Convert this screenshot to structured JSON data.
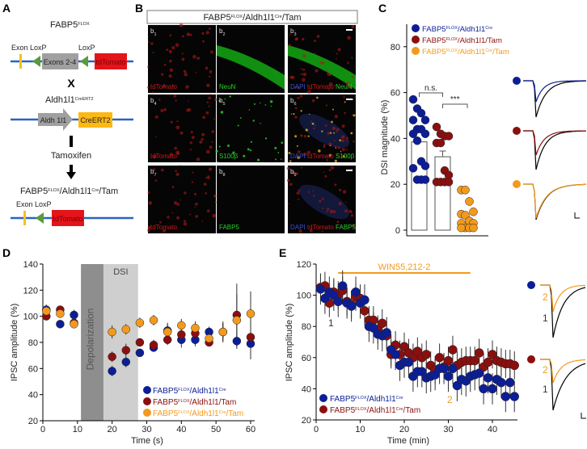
{
  "panel_letters": {
    "a": "A",
    "b": "B",
    "c": "C",
    "d": "D",
    "e": "E"
  },
  "colors": {
    "blue": "#0c1e96",
    "red": "#8b0f0f",
    "orange": "#f39a1e",
    "dna_line": "#2a64c0",
    "exon": "#f2c21b",
    "loxp": "#5a9a3a",
    "tdtomato": "#e4141b",
    "gene_gray": "#a0a0a0",
    "creert2": "#fcb813",
    "green_stain": "#1fbf1f",
    "dapi": "#2b3c9a"
  },
  "panel_a": {
    "title1": [
      {
        "t": "FABP5"
      },
      {
        "t": "FLOX",
        "sup": true
      }
    ],
    "exon1": "Exon",
    "loxp1": "LoxP",
    "loxp2": "LoxP",
    "exons_box": "Exons 2-4",
    "tdtomato1": "tdTomato",
    "cross": "X",
    "title2": [
      {
        "t": "Aldh1l1"
      },
      {
        "t": "CreERT2",
        "sup": true
      }
    ],
    "aldh_arrow": "Aldh 1l1",
    "creert2_box": "CreERT2",
    "tamoxifen": "Tamoxifen",
    "title3": [
      {
        "t": "FABP5"
      },
      {
        "t": "FLOX",
        "sup": true
      },
      {
        "t": "/Aldh1l1"
      },
      {
        "t": "Cre",
        "sup": true
      },
      {
        "t": "/Tam"
      }
    ],
    "exon2": "Exon",
    "loxp3": "LoxP",
    "tdtomato2": "tdTomato"
  },
  "panel_b": {
    "header": [
      {
        "t": "FABP5"
      },
      {
        "t": "FLOX",
        "sup": true
      },
      {
        "t": "/Aldh1l1"
      },
      {
        "t": "Cre",
        "sup": true
      },
      {
        "t": "/Tam"
      }
    ],
    "images": [
      {
        "id": "b",
        "sub": "1",
        "stain": "red",
        "labels": [
          {
            "t": "tdTomato",
            "c": "red"
          }
        ]
      },
      {
        "id": "b",
        "sub": "2",
        "stain": "neun",
        "labels": [
          {
            "t": "NeuN",
            "c": "green"
          }
        ]
      },
      {
        "id": "b",
        "sub": "3",
        "stain": "merge_neun",
        "scalebar": true,
        "labels": [
          {
            "t": "DAPI",
            "c": "blue"
          },
          {
            "t": " tdTomato",
            "c": "red"
          },
          {
            "t": " NeuN",
            "c": "green"
          }
        ]
      },
      {
        "id": "b",
        "sub": "4",
        "stain": "red",
        "labels": [
          {
            "t": "tdTomato",
            "c": "red"
          }
        ]
      },
      {
        "id": "b",
        "sub": "5",
        "stain": "dots_green",
        "labels": [
          {
            "t": "S100β",
            "c": "green"
          }
        ]
      },
      {
        "id": "b",
        "sub": "6",
        "stain": "merge_s100",
        "scalebar": true,
        "labels": [
          {
            "t": "DAPI",
            "c": "blue"
          },
          {
            "t": " tdTomato",
            "c": "red"
          },
          {
            "t": " S100β",
            "c": "green"
          }
        ]
      },
      {
        "id": "b",
        "sub": "7",
        "stain": "red",
        "labels": [
          {
            "t": "tdTomato",
            "c": "red"
          }
        ]
      },
      {
        "id": "b",
        "sub": "8",
        "stain": "empty",
        "labels": [
          {
            "t": "FABP5",
            "c": "green"
          }
        ]
      },
      {
        "id": "b",
        "sub": "9",
        "stain": "merge_fabp5",
        "scalebar": true,
        "labels": [
          {
            "t": "DAPI",
            "c": "blue"
          },
          {
            "t": " tdTomato",
            "c": "red"
          },
          {
            "t": " FABP5",
            "c": "green"
          }
        ]
      }
    ]
  },
  "legend_genotypes": {
    "ctrl": [
      {
        "t": "FABP5"
      },
      {
        "t": "FLOX",
        "sup": true
      },
      {
        "t": "/Aldh1l1"
      },
      {
        "t": "Cre",
        "sup": true
      }
    ],
    "tam_ctrl": [
      {
        "t": "FABP5"
      },
      {
        "t": "FLOX",
        "sup": true
      },
      {
        "t": "/Aldh1l1/Tam"
      }
    ],
    "ko": [
      {
        "t": "FABP5"
      },
      {
        "t": "FLOX",
        "sup": true
      },
      {
        "t": "/Aldh1l1"
      },
      {
        "t": "Cre",
        "sup": true
      },
      {
        "t": "/Tam"
      }
    ],
    "tam_cre": [
      {
        "t": "FABP5"
      },
      {
        "t": "FLOX",
        "sup": true
      },
      {
        "t": "/Aldh1l1"
      },
      {
        "t": "Cre",
        "sup": true
      },
      {
        "t": "/Tam"
      }
    ]
  },
  "chart_data": [
    {
      "panel": "C",
      "type": "bar",
      "ylabel": "DSI magnitude (%)",
      "ylim": [
        0,
        90
      ],
      "yticks": [
        0,
        20,
        40,
        60,
        80
      ],
      "legend_position": "top-left",
      "series": [
        {
          "legend": "ctrl",
          "color": "blue",
          "mean": 38.5,
          "sem": null,
          "points": [
            57,
            53,
            51,
            48,
            48,
            44,
            44,
            42,
            42,
            39,
            30,
            28,
            27,
            22,
            22,
            22
          ]
        },
        {
          "legend": "tam_ctrl",
          "color": "red",
          "mean": 32,
          "sem": 2.5,
          "points": [
            45,
            42,
            41,
            41,
            38,
            38,
            26,
            24,
            21,
            21,
            21,
            21
          ]
        },
        {
          "legend": "ko",
          "color": "orange",
          "mean": null,
          "sem": null,
          "points": [
            17.5,
            17.5,
            12.5,
            8,
            7,
            6.5,
            4,
            3,
            3,
            1,
            1,
            1,
            1
          ]
        }
      ],
      "significance": [
        {
          "between": [
            0,
            1
          ],
          "label": "n.s."
        },
        {
          "between": [
            1,
            2
          ],
          "label": "***"
        }
      ]
    },
    {
      "panel": "D",
      "type": "scatter",
      "xlabel": "Time (s)",
      "ylabel": "IPSC amplitude (%)",
      "xlim": [
        0,
        60
      ],
      "ylim": [
        20,
        140
      ],
      "xticks": [
        0,
        10,
        20,
        30,
        40,
        50,
        60
      ],
      "yticks": [
        20,
        40,
        60,
        80,
        100,
        120,
        140
      ],
      "shaded": [
        {
          "label": "Depolarization",
          "from": 11,
          "to": 17.5,
          "color": "#8e8e8e"
        },
        {
          "label": "DSI",
          "from": 17.5,
          "to": 27.5,
          "color": "#cfcfcf"
        }
      ],
      "legend_position": "bottom-right",
      "x": [
        1,
        5,
        9,
        20,
        24,
        28,
        32,
        36,
        40,
        44,
        48,
        52,
        56,
        60
      ],
      "series": [
        {
          "legend": "ctrl",
          "color": "blue",
          "values": [
            105,
            94,
            101,
            58,
            65,
            72,
            76,
            89,
            82,
            82,
            88,
            88,
            81,
            79
          ],
          "err": [
            4,
            3,
            4,
            4,
            4,
            3,
            3,
            6,
            6,
            5,
            4,
            6,
            6,
            3
          ]
        },
        {
          "legend": "tam_ctrl",
          "color": "red",
          "values": [
            100,
            105,
            95,
            69,
            74,
            80,
            78,
            82,
            86,
            87,
            80,
            88,
            101,
            84
          ],
          "err": [
            3,
            3,
            3,
            4,
            5,
            3,
            4,
            4,
            5,
            5,
            3,
            8,
            24,
            17
          ]
        },
        {
          "legend": "tam_cre",
          "color": "orange",
          "values": [
            104,
            102,
            94,
            88,
            90,
            95,
            97,
            88,
            93,
            91,
            83,
            88,
            97,
            102
          ],
          "err": [
            4,
            3,
            2,
            5,
            4,
            4,
            4,
            6,
            5,
            5,
            5,
            7,
            20,
            17
          ]
        }
      ]
    },
    {
      "panel": "E",
      "type": "scatter",
      "xlabel": "Time (min)",
      "ylabel": "IPSC amplitude (%)",
      "xlim": [
        0,
        45
      ],
      "ylim": [
        20,
        120
      ],
      "xticks": [
        0,
        10,
        20,
        30,
        40
      ],
      "yticks": [
        20,
        40,
        60,
        80,
        100,
        120
      ],
      "drug_bar": {
        "label": "WIN55,212-2",
        "from": 5,
        "to": 35
      },
      "markers": [
        {
          "t": "1",
          "color": "#333333"
        },
        {
          "t": "2",
          "color": "orange"
        }
      ],
      "legend_position": "bottom-left",
      "x": [
        1,
        2,
        3,
        4,
        5,
        6,
        7,
        8,
        9,
        10,
        11,
        12,
        13,
        14,
        15,
        16,
        17,
        18,
        19,
        20,
        21,
        22,
        23,
        24,
        25,
        26,
        27,
        28,
        29,
        30,
        31,
        32,
        33,
        34,
        35,
        36,
        37,
        38,
        39,
        40,
        41,
        42,
        43,
        44,
        45
      ],
      "series": [
        {
          "legend": "ctrl",
          "color": "blue",
          "err": 10,
          "values": [
            104,
            98,
            102,
            100,
            96,
            106,
            95,
            93,
            102,
            95,
            97,
            80,
            79,
            75,
            74,
            76,
            65,
            62,
            55,
            57,
            57,
            48,
            51,
            51,
            47,
            48,
            49,
            53,
            53,
            48,
            53,
            42,
            46,
            45,
            48,
            49,
            50,
            40,
            47,
            40,
            46,
            44,
            35,
            44,
            35
          ]
        },
        {
          "legend": "ko",
          "color": "red",
          "err": 9,
          "values": [
            105,
            106,
            95,
            102,
            100,
            103,
            96,
            94,
            99,
            98,
            90,
            84,
            84,
            78,
            82,
            74,
            62,
            68,
            62,
            67,
            63,
            60,
            64,
            60,
            62,
            55,
            52,
            60,
            54,
            58,
            65,
            55,
            57,
            58,
            58,
            58,
            63,
            54,
            57,
            62,
            58,
            57,
            56,
            56,
            55
          ]
        }
      ]
    }
  ]
}
